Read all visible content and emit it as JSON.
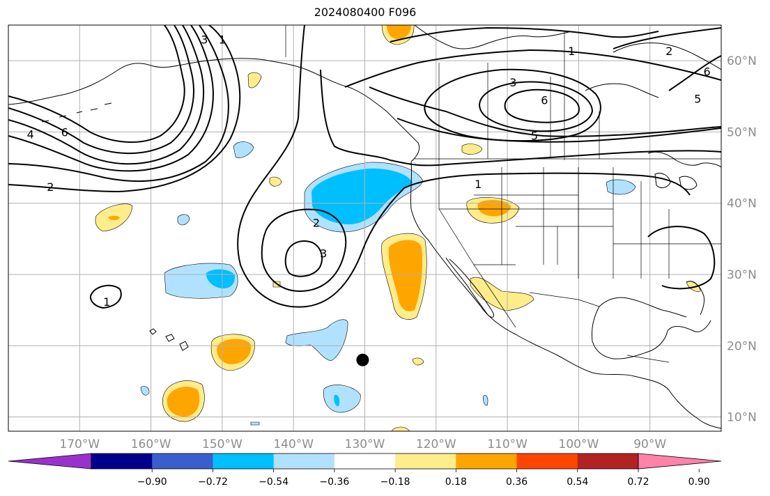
{
  "title": "2024080400 F096",
  "map": {
    "lon_range": [
      -180,
      -80
    ],
    "lat_range": [
      8,
      65
    ],
    "gridlines": true,
    "lon_ticks": [
      {
        "value": -170,
        "label": "170°W"
      },
      {
        "value": -160,
        "label": "160°W"
      },
      {
        "value": -150,
        "label": "150°W"
      },
      {
        "value": -140,
        "label": "140°W"
      },
      {
        "value": -130,
        "label": "130°W"
      },
      {
        "value": -120,
        "label": "120°W"
      },
      {
        "value": -110,
        "label": "110°W"
      },
      {
        "value": -100,
        "label": "100°W"
      },
      {
        "value": -90,
        "label": "90°W"
      }
    ],
    "lat_ticks": [
      {
        "value": 60,
        "label": "60°N"
      },
      {
        "value": 50,
        "label": "50°N"
      },
      {
        "value": 40,
        "label": "40°N"
      },
      {
        "value": 30,
        "label": "30°N"
      },
      {
        "value": 20,
        "label": "20°N"
      },
      {
        "value": 10,
        "label": "10°N"
      }
    ],
    "marker": {
      "lon": -130.3,
      "lat": 18.0
    },
    "contour_labels": [
      {
        "text": "1",
        "lon": -150.0,
        "lat": 63.0
      },
      {
        "text": "3",
        "lon": -152.5,
        "lat": 63.0
      },
      {
        "text": "4",
        "lon": -176.9,
        "lat": 49.7
      },
      {
        "text": "6",
        "lon": -172.1,
        "lat": 50.0
      },
      {
        "text": "2",
        "lon": -174.1,
        "lat": 42.3
      },
      {
        "text": "1",
        "lon": -166.2,
        "lat": 26.2
      },
      {
        "text": "2",
        "lon": -136.8,
        "lat": 37.3
      },
      {
        "text": "3",
        "lon": -135.8,
        "lat": 33.0
      },
      {
        "text": "1",
        "lon": -114.1,
        "lat": 42.7
      },
      {
        "text": "1",
        "lon": -101.0,
        "lat": 61.4
      },
      {
        "text": "2",
        "lon": -87.3,
        "lat": 61.4
      },
      {
        "text": "3",
        "lon": -109.2,
        "lat": 57.0
      },
      {
        "text": "6",
        "lon": -104.8,
        "lat": 54.5
      },
      {
        "text": "5",
        "lon": -106.2,
        "lat": 49.5
      },
      {
        "text": "5",
        "lon": -83.3,
        "lat": 54.7
      },
      {
        "text": "6",
        "lon": -82.0,
        "lat": 58.5
      }
    ]
  },
  "colorbar": {
    "colors": [
      "#9932cc",
      "#00008b",
      "#3a5fcd",
      "#00bfff",
      "#b0e2ff",
      "#ffffff",
      "#ffec8b",
      "#ffa500",
      "#ff4500",
      "#b22222",
      "#ff82ab"
    ],
    "extend": "both",
    "ticks": [
      "−0.90",
      "−0.72",
      "−0.54",
      "−0.36",
      "−0.18",
      "0.18",
      "0.36",
      "0.54",
      "0.72",
      "0.90"
    ]
  }
}
